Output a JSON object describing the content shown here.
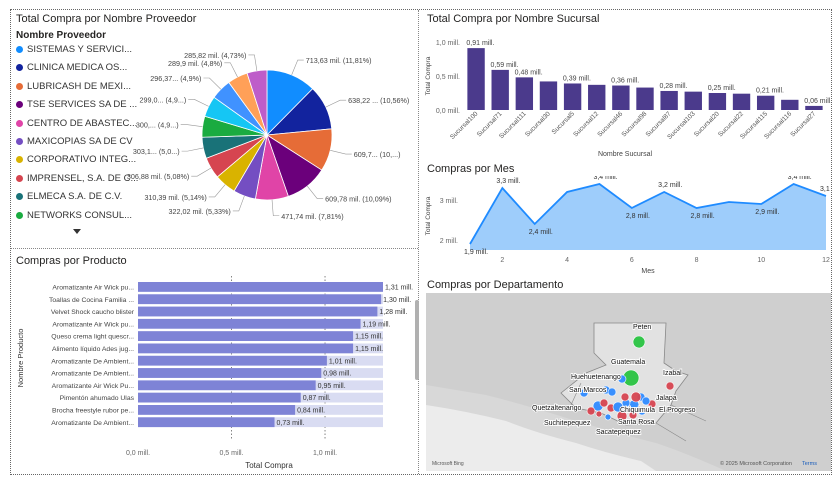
{
  "colors": {
    "pie": [
      "#118DFF",
      "#12239E",
      "#E66C37",
      "#6B007B",
      "#E044A7",
      "#744EC2",
      "#D9B300",
      "#D64550",
      "#197278",
      "#1AAB40",
      "#15C6F4",
      "#4092FF",
      "#FFA058",
      "#BE5DC9",
      "#F472D0"
    ],
    "bar": "#4B3A8C",
    "productBar": "#7E83D6",
    "productBg": "#D9DCF2",
    "area": "#1F8BFF",
    "areaFill": "#9ECDFB",
    "mapBlue": "#2F8BFF",
    "mapRed": "#D64550",
    "mapGreen": "#29C341"
  },
  "chart_data": [
    {
      "type": "pie",
      "title": "Total Compra por Nombre Proveedor",
      "legend_title": "Nombre Proveedor",
      "legend": [
        "SISTEMAS Y SERVICI...",
        "CLINICA MEDICA OS...",
        "LUBRICASH DE MEXI...",
        "TSE SERVICES SA DE ...",
        "CENTRO DE ABASTEC...",
        "MAXICOPIAS SA DE CV",
        "CORPORATIVO INTEG...",
        "IMPRENSEL, S.A. DE C...",
        "ELMECA S.A. DE C.V.",
        "NETWORKS CONSUL..."
      ],
      "values": [
        713.63,
        638.22,
        609.7,
        609.78,
        471.74,
        322.02,
        310.39,
        306.88,
        303.1,
        300,
        299.0,
        296.37,
        289.9,
        285.82
      ],
      "labels": [
        "713,63 mil. (11,81%)",
        "638,22 ... (10,56%)",
        "609,7... (10,...)",
        "609,78 mil. (10,09%)",
        "471,74 mil. (7,81%)",
        "322,02 mil. (5,33%)",
        "310,39 mil. (5,14%)",
        "306,88 mil. (5,08%)",
        "303,1... (5,0...)",
        "300,... (4,9...)",
        "299,0... (4,9...)",
        "296,37... (4,9%)",
        "289,9 mil. (4,8%)",
        "285,82 mil. (4,73%)"
      ]
    },
    {
      "type": "bar",
      "title": "Total Compra por Nombre Sucursal",
      "xlabel": "Nombre Sucursal",
      "ylabel": "Total Compra",
      "yticks": [
        "1,0 mill.",
        "0,5 mill.",
        "0,0 mill."
      ],
      "ylim": [
        0,
        1.0
      ],
      "categories": [
        "Sucursal100",
        "Sucursal71",
        "Sucursal111",
        "Sucursal30",
        "Sucursal5",
        "Sucursal12",
        "Sucursal46",
        "Sucursal98",
        "Sucursal87",
        "Sucursal103",
        "Sucursal20",
        "Sucursal22",
        "Sucursal115",
        "Sucursal116",
        "Sucursal27"
      ],
      "values": [
        0.91,
        0.59,
        0.48,
        0.42,
        0.39,
        0.37,
        0.36,
        0.33,
        0.28,
        0.27,
        0.25,
        0.24,
        0.21,
        0.15,
        0.06
      ],
      "data_labels": [
        "0,91 mill.",
        "0,59 mill.",
        "0,48 mill.",
        "",
        "0,39 mill.",
        "",
        "0,36 mill.",
        "",
        "0,28 mill.",
        "",
        "0,25 mill.",
        "",
        "0,21 mill.",
        "",
        "0,06 mill."
      ]
    },
    {
      "type": "area",
      "title": "Compras por Mes",
      "xlabel": "Mes",
      "ylabel": "Total Compra",
      "yticks": [
        "3 mill.",
        "2 mill."
      ],
      "xticks": [
        "2",
        "4",
        "6",
        "8",
        "10",
        "12"
      ],
      "ylim": [
        1.75,
        3.45
      ],
      "xlim": [
        1,
        12
      ],
      "x": [
        1,
        2,
        3,
        4,
        5,
        6,
        7,
        8,
        9,
        10,
        11,
        12
      ],
      "values": [
        1.9,
        3.3,
        2.4,
        3.2,
        3.4,
        2.8,
        3.2,
        2.8,
        2.95,
        2.9,
        3.4,
        3.1
      ],
      "data_labels": [
        "1,9 mill.",
        "3,3 mill.",
        "2,4 mill.",
        "",
        "3,4 mill.",
        "2,8 mill.",
        "3,2 mill.",
        "2,8 mill.",
        "",
        "2,9 mill.",
        "3,4 mill.",
        "3,1 mill."
      ]
    },
    {
      "type": "bar",
      "orientation": "horizontal",
      "title": "Compras por Producto",
      "xlabel": "Total Compra",
      "ylabel": "Nombre Producto",
      "xticks": [
        "0,0 mill.",
        "0,5 mill.",
        "1,0 mill."
      ],
      "xlim": [
        0,
        1.31
      ],
      "categories": [
        "Aromatizante Air Wick pu...",
        "Toallas de Cocina Familia ...",
        "Velvet Shock caucho blister",
        "Aromatizante Air Wick pu...",
        "Queso crema light quescr...",
        "Alimento líquido Ades jug...",
        "Aromatizante De Ambient...",
        "Aromatizante De Ambient...",
        "Aromatizante Air Wick Pu...",
        "Pimentón ahumado Ulas",
        "Brocha freestyle rubor pe...",
        "Aromatizante De Ambient..."
      ],
      "values": [
        1.31,
        1.3,
        1.28,
        1.19,
        1.15,
        1.15,
        1.01,
        0.98,
        0.95,
        0.87,
        0.84,
        0.73
      ],
      "data_labels": [
        "1,31 mill.",
        "1,30 mill.",
        "1,28 mill.",
        "1,19 mill.",
        "1,15 mill.",
        "1,15 mill.",
        "1,01 mill.",
        "0,98 mill.",
        "0,95 mill.",
        "0,87 mill.",
        "0,84 mill.",
        "0,73 mill."
      ]
    }
  ],
  "map": {
    "title": "Compras por Departamento",
    "labels": [
      "Peten",
      "Guatemala",
      "Izabal",
      "Huehuetenango",
      "San Marcos",
      "Jalapa",
      "Quetzaltenango",
      "Chiquimula",
      "El Progreso",
      "Suchitepequez",
      "Santa Rosa",
      "Sacatepequez"
    ],
    "attribution": "© 2025 Microsoft Corporation",
    "terms": "Terms",
    "logo": "Microsoft Bing"
  }
}
